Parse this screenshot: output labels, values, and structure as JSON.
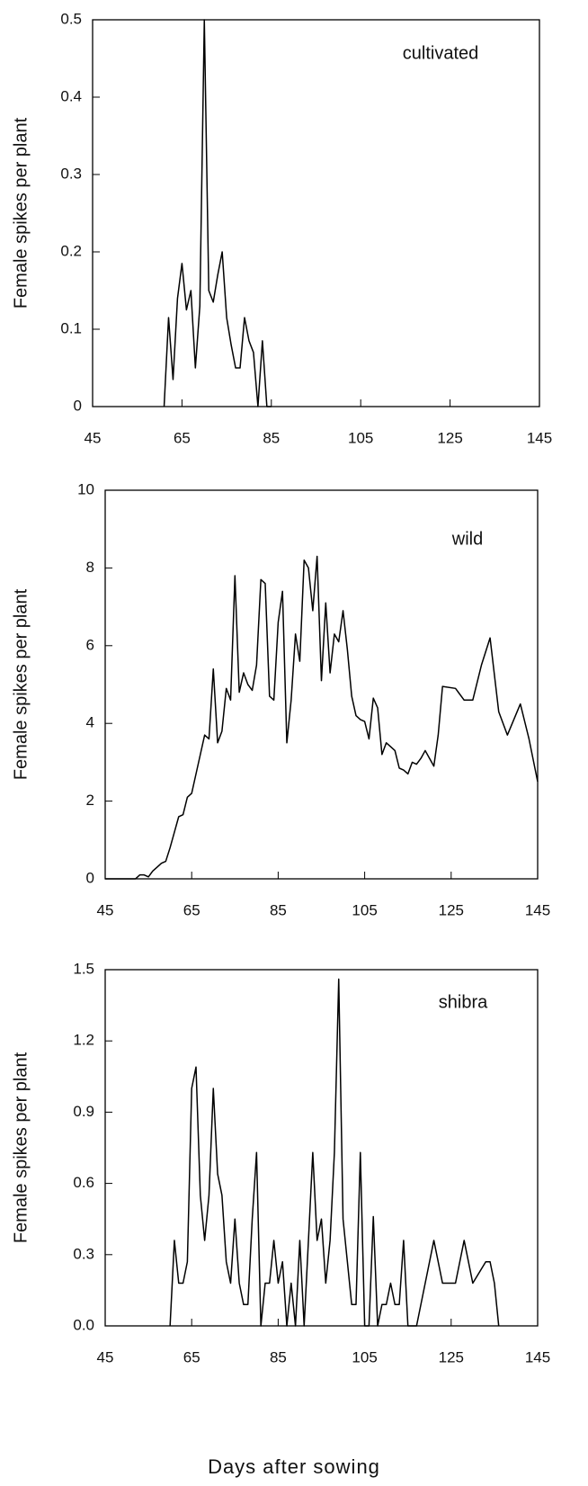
{
  "chart_data": [
    {
      "type": "line",
      "annotation": "cultivated",
      "ylabel": "Female spikes per plant",
      "color": "#000000",
      "x": [
        61,
        62,
        63,
        64,
        65,
        66,
        67,
        68,
        69,
        70,
        71,
        72,
        73,
        74,
        75,
        76,
        77,
        78,
        79,
        80,
        81,
        82,
        83,
        84,
        85
      ],
      "values": [
        0,
        0.115,
        0.035,
        0.14,
        0.185,
        0.125,
        0.15,
        0.05,
        0.13,
        0.5,
        0.15,
        0.135,
        0.17,
        0.2,
        0.115,
        0.08,
        0.05,
        0.05,
        0.115,
        0.085,
        0.07,
        0,
        0.085,
        0,
        0
      ],
      "xlim": [
        45,
        145
      ],
      "xticks": [
        45,
        65,
        85,
        105,
        125,
        145
      ],
      "ylim": [
        0,
        0.5
      ],
      "yticks": [
        0,
        0.1,
        0.2,
        0.3,
        0.4,
        0.5
      ]
    },
    {
      "type": "line",
      "annotation": "wild",
      "ylabel": "Female spikes per plant",
      "color": "#000000",
      "x": [
        45,
        52,
        53,
        54,
        55,
        56,
        57,
        58,
        59,
        60,
        61,
        62,
        63,
        64,
        65,
        66,
        67,
        68,
        69,
        70,
        71,
        72,
        73,
        74,
        75,
        76,
        77,
        78,
        79,
        80,
        81,
        82,
        83,
        84,
        85,
        86,
        87,
        88,
        89,
        90,
        91,
        92,
        93,
        94,
        95,
        96,
        97,
        98,
        99,
        100,
        101,
        102,
        103,
        104,
        105,
        106,
        107,
        108,
        109,
        110,
        111,
        112,
        113,
        114,
        115,
        116,
        117,
        118,
        119,
        120,
        121,
        122,
        123,
        126,
        128,
        130,
        132,
        134,
        136,
        138,
        141,
        143,
        145
      ],
      "values": [
        0,
        0,
        0.1,
        0.1,
        0.05,
        0.2,
        0.3,
        0.4,
        0.45,
        0.8,
        1.2,
        1.6,
        1.65,
        2.1,
        2.2,
        2.7,
        3.2,
        3.7,
        3.6,
        5.4,
        3.5,
        3.8,
        4.9,
        4.6,
        7.8,
        4.8,
        5.3,
        5.0,
        4.85,
        5.5,
        7.7,
        7.6,
        4.7,
        4.6,
        6.6,
        7.4,
        3.5,
        4.6,
        6.3,
        5.6,
        8.2,
        8.0,
        6.9,
        8.3,
        5.1,
        7.1,
        5.3,
        6.3,
        6.1,
        6.9,
        5.9,
        4.7,
        4.2,
        4.1,
        4.05,
        3.6,
        4.65,
        4.4,
        3.2,
        3.5,
        3.4,
        3.3,
        2.85,
        2.8,
        2.7,
        3.0,
        2.95,
        3.1,
        3.3,
        3.1,
        2.9,
        3.7,
        4.95,
        4.9,
        4.6,
        4.6,
        5.5,
        6.2,
        4.3,
        3.7,
        4.5,
        3.6,
        2.5
      ],
      "xlim": [
        45,
        145
      ],
      "xticks": [
        45,
        65,
        85,
        105,
        125,
        145
      ],
      "ylim": [
        0,
        10
      ],
      "yticks": [
        0,
        2,
        4,
        6,
        8,
        10
      ]
    },
    {
      "type": "line",
      "annotation": "shibra",
      "ylabel": "Female spikes per plant",
      "xlabel": "Days after sowing",
      "color": "#000000",
      "x": [
        60,
        61,
        62,
        63,
        64,
        65,
        66,
        67,
        68,
        69,
        70,
        71,
        72,
        73,
        74,
        75,
        76,
        77,
        78,
        79,
        80,
        81,
        82,
        83,
        84,
        85,
        86,
        87,
        88,
        89,
        90,
        91,
        92,
        93,
        94,
        95,
        96,
        97,
        98,
        99,
        100,
        101,
        102,
        103,
        104,
        105,
        106,
        107,
        108,
        109,
        110,
        111,
        112,
        113,
        114,
        115,
        116,
        117,
        121,
        123,
        126,
        128,
        130,
        133,
        134,
        135,
        136
      ],
      "values": [
        0,
        0.36,
        0.18,
        0.18,
        0.27,
        1.0,
        1.09,
        0.55,
        0.36,
        0.55,
        1.0,
        0.64,
        0.55,
        0.27,
        0.18,
        0.45,
        0.18,
        0.09,
        0.09,
        0.45,
        0.73,
        0,
        0.18,
        0.18,
        0.36,
        0.18,
        0.27,
        0,
        0.18,
        0,
        0.36,
        0,
        0.36,
        0.73,
        0.36,
        0.45,
        0.18,
        0.36,
        0.73,
        1.46,
        0.45,
        0.27,
        0.09,
        0.09,
        0.73,
        0,
        0,
        0.46,
        0,
        0.09,
        0.09,
        0.18,
        0.09,
        0.09,
        0.36,
        0,
        0,
        0,
        0.36,
        0.18,
        0.18,
        0.36,
        0.18,
        0.27,
        0.27,
        0.18,
        0
      ],
      "xlim": [
        45,
        145
      ],
      "xticks": [
        45,
        65,
        85,
        105,
        125,
        145
      ],
      "ylim": [
        0,
        1.5
      ],
      "yticks": [
        {
          "value": 0,
          "label": "0.0"
        },
        0.3,
        0.6,
        0.9,
        1.2,
        1.5
      ]
    }
  ]
}
